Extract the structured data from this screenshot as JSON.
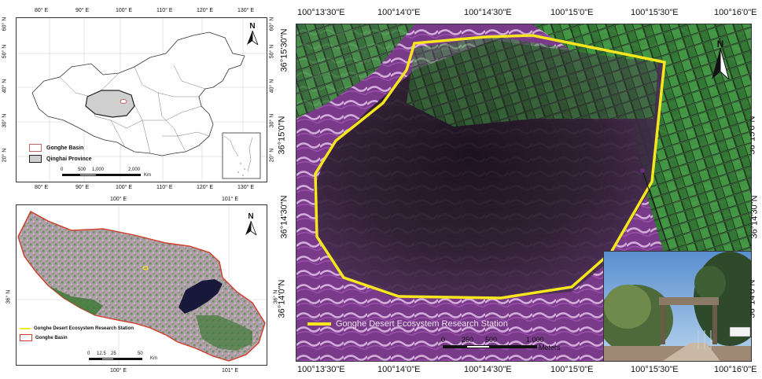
{
  "top_left_map": {
    "top_ticks": [
      "80° E",
      "90° E",
      "100° E",
      "110° E",
      "120° E",
      "130° E"
    ],
    "bottom_ticks": [
      "80° E",
      "90° E",
      "100° E",
      "110° E",
      "120° E",
      "130° E"
    ],
    "left_ticks": [
      "60° N",
      "50° N",
      "40° N",
      "30° N",
      "20° N"
    ],
    "right_ticks": [
      "60° N",
      "50° N",
      "40° N",
      "30° N",
      "20° N"
    ],
    "north_label": "N",
    "legend": [
      {
        "label": "Gonghe Basin",
        "color": "#ffffff",
        "border": "#c86464"
      },
      {
        "label": "Qinghai Province",
        "color": "#cfcfcf",
        "border": "#222222"
      }
    ],
    "scale_labels": [
      "0",
      "500",
      "1,000",
      "2,000"
    ],
    "scale_unit": "Km"
  },
  "bottom_left_map": {
    "top_ticks": [
      "100° E",
      "101° E"
    ],
    "bottom_ticks": [
      "100° E",
      "101° E"
    ],
    "left_ticks": [
      "36° N"
    ],
    "right_ticks": [
      "36° N"
    ],
    "north_label": "N",
    "legend": [
      {
        "label": "Gonghe Desert Ecosystem Research Station",
        "color": "#f5e61e"
      },
      {
        "label": "Gonghe Basin",
        "color": "#d23c28"
      }
    ],
    "scale_labels": [
      "0",
      "12.5",
      "25",
      "50"
    ],
    "scale_unit": "Km"
  },
  "main_map": {
    "top_ticks": [
      "100°13'30\"E",
      "100°14'0\"E",
      "100°14'30\"E",
      "100°15'0\"E",
      "100°15'30\"E",
      "100°16'0\"E"
    ],
    "bottom_ticks": [
      "100°13'30\"E",
      "100°14'0\"E",
      "100°14'30\"E",
      "100°15'0\"E",
      "100°15'30\"E",
      "100°16'0\"E"
    ],
    "left_ticks": [
      "36°15'30\"N",
      "36°15'0\"N",
      "36°14'30\"N",
      "36°14'0\"N"
    ],
    "right_ticks": [
      "36°15'0\"N",
      "36°14'30\"N",
      "36°14'0\"N"
    ],
    "north_label": "N",
    "legend_label": "Gonghe Desert Ecosystem Research Station",
    "legend_color": "#f5e61e",
    "scale_labels": [
      "0",
      "250",
      "500",
      "1,000"
    ],
    "scale_unit": "Meters"
  }
}
